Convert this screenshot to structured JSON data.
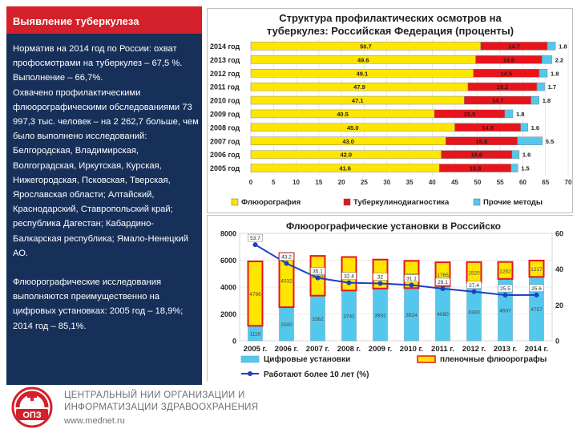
{
  "left_panel": {
    "title": "Выявление туберкулеза",
    "paragraphs": [
      "Норматив на 2014 год по России: охват профосмотрами на туберкулез – 67,5 %.",
      "Выполнение – 66,7%.",
      "Охвачено профилактическими флюорографическими обследованиями 73 997,3 тыс. человек – на 2 262,7 больше, чем было выполнено исследований: Белгородская, Владимирская, Волгоградская, Иркутская, Курская, Нижегородская, Псковская, Тверская, Ярославская области; Алтайский, Краснодарский, Ставропольский край; республика Дагестан; Кабардино-Балкарская республика; Ямало-Ненецкий АО.",
      "Флюорографические исследования выполняются преимущественно на цифровых установках: 2005 год – 18,9%; 2014 год – 85,1%."
    ]
  },
  "colors": {
    "header_red": "#d4202a",
    "panel_navy": "#17305a",
    "yellow": "#ffe600",
    "red": "#e8141c",
    "cyan": "#54c8ec",
    "line_blue": "#1f3fbf"
  },
  "chart_data": [
    {
      "type": "bar",
      "stacked": true,
      "orientation": "horizontal",
      "title": "Структура профилактических осмотров на туберкулез: Российская Федерация (проценты)",
      "categories": [
        "2014 год",
        "2013 год",
        "2012 год",
        "2011 год",
        "2010 год",
        "2009 год",
        "2008 год",
        "2007 год",
        "2006 год",
        "2005 год"
      ],
      "series": [
        {
          "name": "Флюорография",
          "color": "#ffe600",
          "values": [
            50.7,
            49.6,
            49.1,
            47.9,
            47.1,
            40.5,
            45.0,
            43.0,
            42.0,
            41.6
          ],
          "labels": [
            "50.7",
            "49.6",
            "49.1",
            "47.9",
            "47.1",
            "40.5",
            "45.0",
            "43.0",
            "42.0",
            "41.6"
          ]
        },
        {
          "name": "Туберкулинодиагностика",
          "color": "#e8141c",
          "values": [
            14.7,
            14.6,
            14.5,
            15.2,
            14.7,
            15.5,
            14.5,
            15.8,
            15.6,
            15.8
          ],
          "labels": [
            "14.7",
            "14.6",
            "14.5",
            "15.2",
            "14.7",
            "15.5",
            "14.5",
            "15.8",
            "15.6",
            "15.8"
          ]
        },
        {
          "name": "Прочие методы",
          "color": "#54c8ec",
          "values": [
            1.8,
            2.2,
            1.8,
            1.7,
            1.8,
            1.8,
            1.6,
            5.5,
            1.6,
            1.5
          ],
          "labels": [
            "1.8",
            "2.2",
            "1.8",
            "1.7",
            "1.8",
            "1.8",
            "1.6",
            "5.5",
            "1.6",
            "1.5"
          ]
        }
      ],
      "xlim": [
        0,
        70
      ],
      "xticks": [
        "0",
        "5",
        "10",
        "15",
        "20",
        "25",
        "30",
        "35",
        "40",
        "45",
        "50",
        "55",
        "60",
        "65",
        "70"
      ],
      "legend": [
        "Флюорография",
        "Туберкулинодиагностика",
        "Прочие методы"
      ],
      "legend_position": "bottom"
    },
    {
      "type": "bar+line",
      "stacked": true,
      "title": "Флюорографические установки в Российской Федерации",
      "categories": [
        "2005 г.",
        "2006 г.",
        "2007 г.",
        "2008 г.",
        "2009 г.",
        "2010 г.",
        "2011 г.",
        "2012 г.",
        "2013 г.",
        "2014 г."
      ],
      "bar_series": [
        {
          "name": "Цифровые установки",
          "color": "#54c8ec",
          "values": [
            1116,
            2500,
            3362,
            3742,
            3892,
            3924,
            4080,
            4340,
            4607,
            4757
          ]
        },
        {
          "name": "пленочные флюорографы",
          "color": "#ffe600",
          "values": [
            4796,
            4032,
            2958,
            2497,
            2155,
            2030,
            1765,
            1520,
            1262,
            1217
          ]
        }
      ],
      "line_series": {
        "name": "Работают более 10 лет (%)",
        "color": "#1f3fbf",
        "values": [
          53.7,
          43.2,
          35.1,
          32.4,
          32.0,
          31.1,
          29.1,
          27.4,
          25.5,
          25.6
        ]
      },
      "ylim_left": [
        0,
        8000
      ],
      "yticks_left": [
        "0",
        "2000",
        "4000",
        "6000",
        "8000"
      ],
      "ylim_right": [
        0,
        60
      ],
      "yticks_right": [
        "0",
        "20",
        "40",
        "60"
      ],
      "legend": [
        "Цифровые установки",
        "пленочные флюорографы",
        "Работают более 10 лет (%)"
      ],
      "legend_position": "bottom"
    }
  ],
  "footer": {
    "logo_text": "ОПЗ",
    "org_line1": "ЦЕНТРАЛЬНЫЙ НИИ ОРГАНИЗАЦИИ И",
    "org_line2": "ИНФОРМАТИЗАЦИИ ЗДРАВООХРАНЕНИЯ",
    "url": "www.mednet.ru"
  }
}
